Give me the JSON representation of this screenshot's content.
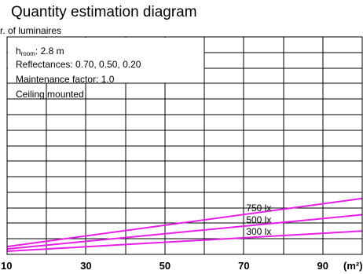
{
  "chart_data": {
    "type": "line",
    "title": "Quantity estimation diagram",
    "ylabel": "r. of luminaires",
    "xlabel": "(m²)",
    "xlim": [
      10,
      100
    ],
    "ylim": [
      0,
      14
    ],
    "x_ticks": [
      10,
      30,
      50,
      70,
      90
    ],
    "grid": true,
    "notes": {
      "h_room_main": "h",
      "h_room_sub": "room",
      "h_room_value": ": 2.8 m",
      "reflectances": "Reflectances: 0.70, 0.50, 0.20",
      "maintenance": "Maintenance factor: 1.0",
      "mounting": "Ceiling mounted"
    },
    "series": [
      {
        "name": "750 lx",
        "color": "#e81ee8",
        "x": [
          10,
          100
        ],
        "y": [
          0.5,
          3.6
        ]
      },
      {
        "name": "500 lx",
        "color": "#e81ee8",
        "x": [
          10,
          100
        ],
        "y": [
          0.35,
          2.55
        ]
      },
      {
        "name": "300 lx",
        "color": "#e81ee8",
        "x": [
          10,
          100
        ],
        "y": [
          0.2,
          1.5
        ]
      }
    ]
  }
}
